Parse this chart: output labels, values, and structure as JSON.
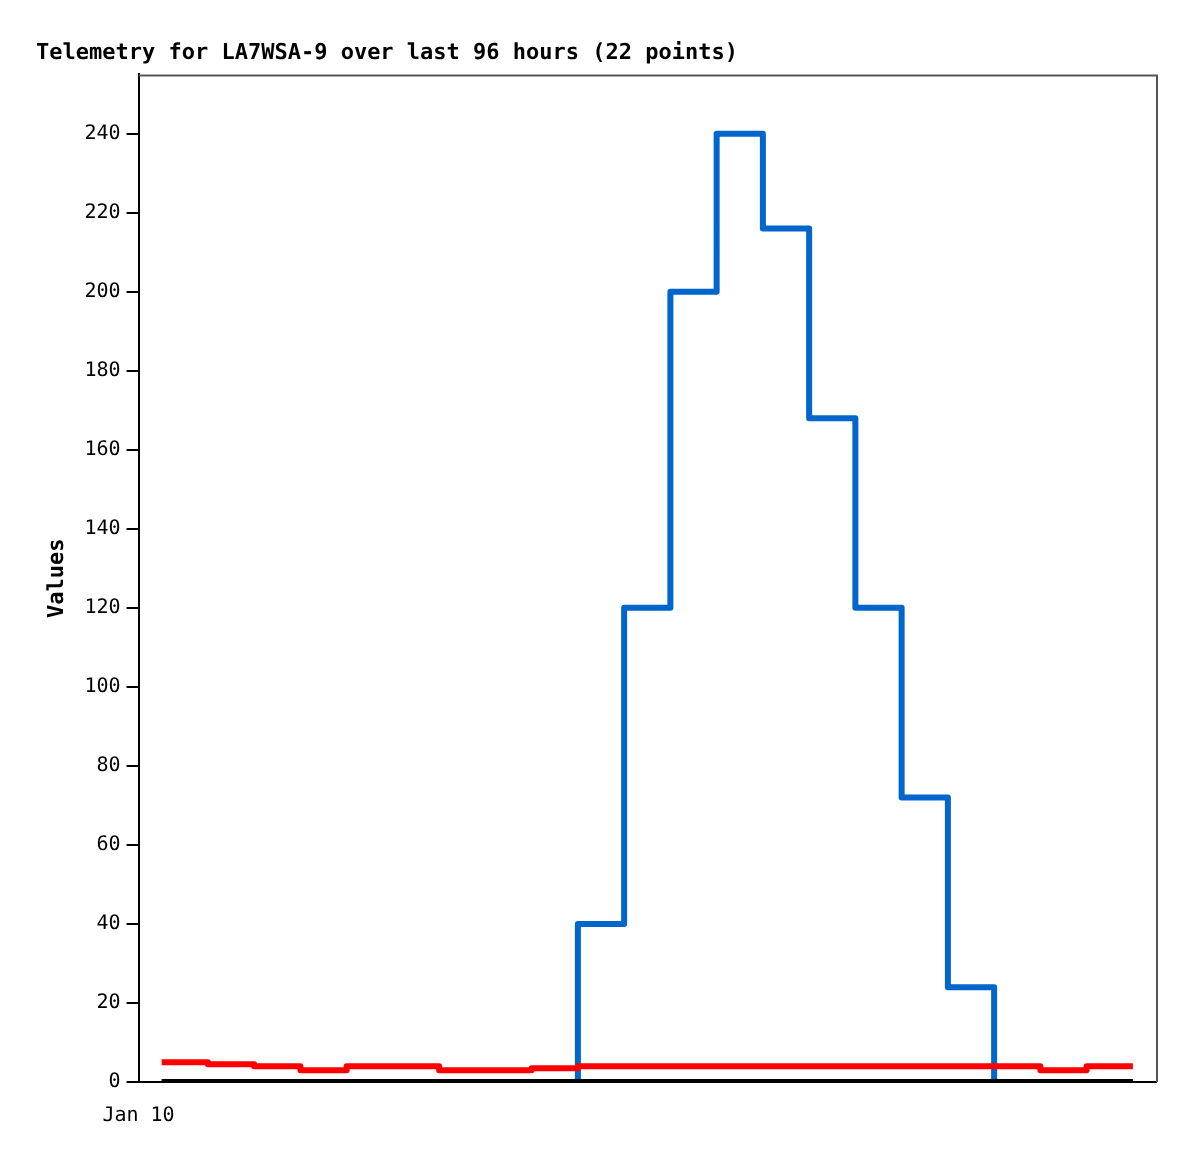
{
  "chart_data": {
    "type": "step",
    "title": "Telemetry for LA7WSA-9 over last 96 hours (22 points)",
    "ylabel": "Values",
    "categories": [
      null,
      null,
      null,
      null,
      null,
      null,
      null,
      null,
      null,
      null,
      null,
      null,
      null,
      null,
      null,
      null,
      null,
      null,
      null,
      null,
      null,
      null
    ],
    "series": [
      {
        "color": "#0066cc",
        "values": [
          null,
          null,
          null,
          null,
          null,
          null,
          null,
          null,
          0,
          40,
          120,
          200,
          240,
          216,
          168,
          120,
          72,
          24,
          0,
          null,
          null,
          null
        ]
      },
      {
        "color": "#ff0000",
        "values": [
          5,
          4.5,
          4,
          3,
          4,
          4,
          3,
          3,
          3.5,
          4,
          4,
          4,
          4,
          4,
          4,
          4,
          4,
          4,
          4,
          3,
          4,
          4
        ]
      },
      {
        "color": "#000000",
        "values": [
          0,
          0,
          0,
          0,
          0,
          0,
          0,
          0,
          0,
          0,
          0,
          0,
          0,
          0,
          0,
          0,
          0,
          0,
          0,
          0,
          0,
          0
        ]
      }
    ],
    "annotations": [
      "Jan 10"
    ],
    "ylim": [
      0,
      255
    ],
    "yticks": [
      0,
      20,
      40,
      60,
      80,
      100,
      120,
      140,
      160,
      180,
      200,
      220,
      240
    ],
    "grid": false,
    "legend": false
  }
}
